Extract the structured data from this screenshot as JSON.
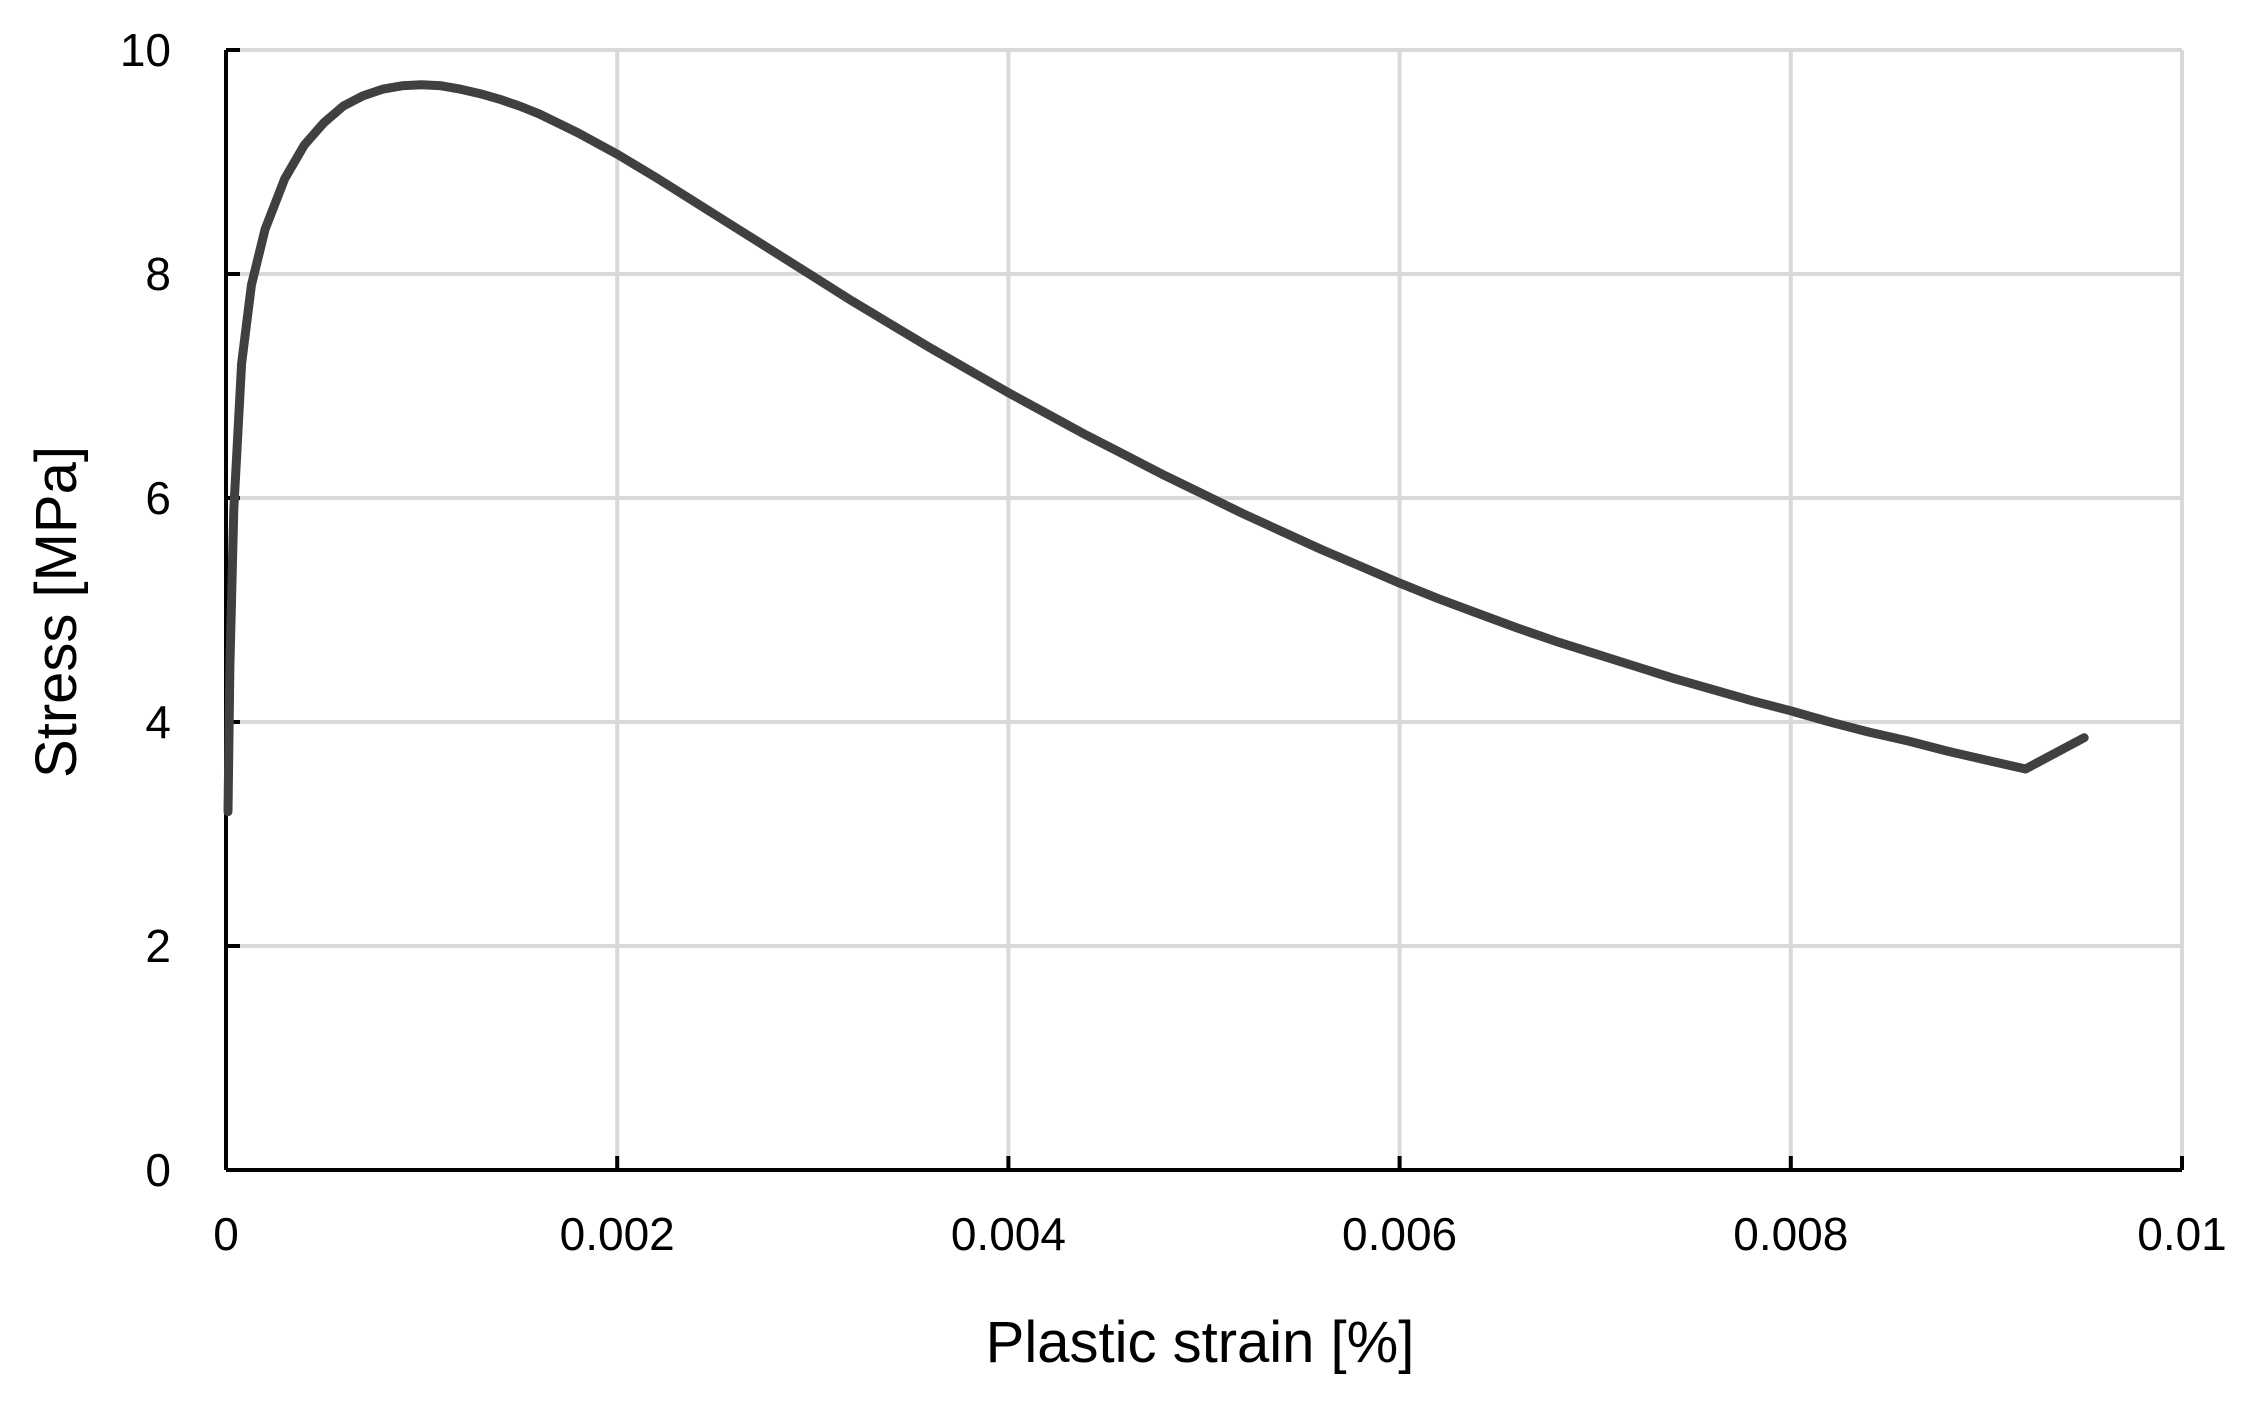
{
  "chart_data": {
    "type": "line",
    "title": "",
    "xlabel": "Plastic strain [%]",
    "ylabel": "Stress [MPa]",
    "xlim": [
      0,
      0.01
    ],
    "ylim": [
      0,
      10
    ],
    "xticks": [
      0,
      0.002,
      0.004,
      0.006,
      0.008,
      0.01
    ],
    "xtick_labels": [
      "0",
      "0.002",
      "0.004",
      "0.006",
      "0.008",
      "0.01"
    ],
    "yticks": [
      0,
      2,
      4,
      6,
      8,
      10
    ],
    "ytick_labels": [
      "0",
      "2",
      "4",
      "6",
      "8",
      "10"
    ],
    "grid": true,
    "legend": "none",
    "series": [
      {
        "color": "#404040",
        "x": [
          1e-05,
          2e-05,
          4e-05,
          8e-05,
          0.00013,
          0.0002,
          0.0003,
          0.0004,
          0.0005,
          0.0006,
          0.0007,
          0.0008,
          0.0009,
          0.001,
          0.0011,
          0.0012,
          0.0013,
          0.0014,
          0.0015,
          0.0016,
          0.0018,
          0.002,
          0.0022,
          0.0024,
          0.0026,
          0.0028,
          0.003,
          0.0032,
          0.0034,
          0.0036,
          0.0038,
          0.004,
          0.0042,
          0.0044,
          0.0046,
          0.0048,
          0.005,
          0.0052,
          0.0054,
          0.0056,
          0.0058,
          0.006,
          0.0062,
          0.0064,
          0.0066,
          0.0068,
          0.007,
          0.0072,
          0.0074,
          0.0076,
          0.0078,
          0.008,
          0.0082,
          0.0084,
          0.0086,
          0.0088,
          0.009,
          0.0092,
          0.0095
        ],
        "y": [
          3.2,
          4.5,
          5.9,
          7.2,
          7.9,
          8.4,
          8.85,
          9.15,
          9.35,
          9.5,
          9.59,
          9.65,
          9.68,
          9.69,
          9.68,
          9.65,
          9.61,
          9.56,
          9.5,
          9.43,
          9.26,
          9.07,
          8.86,
          8.64,
          8.42,
          8.2,
          7.98,
          7.76,
          7.55,
          7.34,
          7.14,
          6.94,
          6.75,
          6.56,
          6.38,
          6.2,
          6.03,
          5.86,
          5.7,
          5.54,
          5.39,
          5.24,
          5.1,
          4.97,
          4.84,
          4.72,
          4.61,
          4.5,
          4.39,
          4.29,
          4.19,
          4.1,
          4.0,
          3.91,
          3.83,
          3.74,
          3.66,
          3.58,
          3.86
        ]
      }
    ]
  }
}
